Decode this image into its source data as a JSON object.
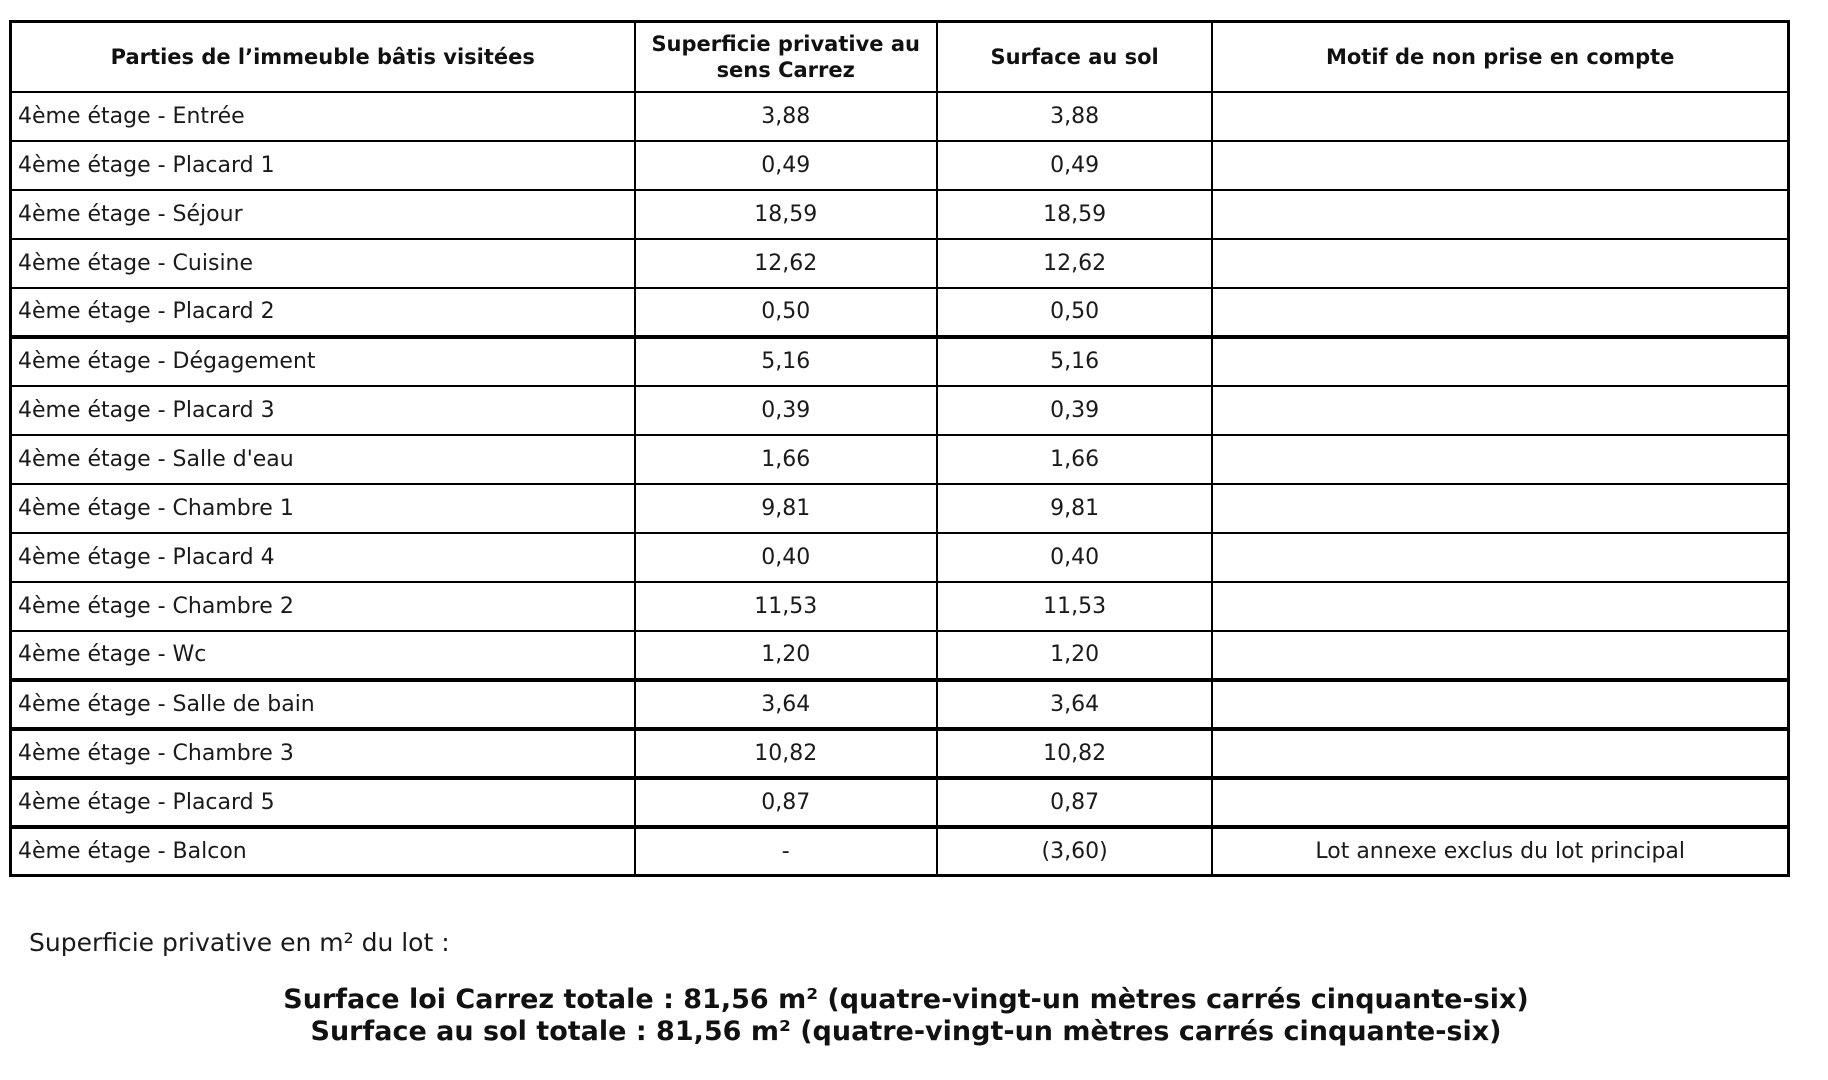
{
  "table": {
    "headers": [
      "Parties de l’immeuble bâtis visitées",
      "Superficie privative au sens Carrez",
      "Surface au sol",
      "Motif de non prise en compte"
    ],
    "rows": [
      {
        "partie": "4ème étage - Entrée",
        "superficie": "3,88",
        "surface": "3,88",
        "motif": ""
      },
      {
        "partie": "4ème étage - Placard 1",
        "superficie": "0,49",
        "surface": "0,49",
        "motif": ""
      },
      {
        "partie": "4ème étage - Séjour",
        "superficie": "18,59",
        "surface": "18,59",
        "motif": ""
      },
      {
        "partie": "4ème étage - Cuisine",
        "superficie": "12,62",
        "surface": "12,62",
        "motif": ""
      },
      {
        "partie": "4ème étage - Placard 2",
        "superficie": "0,50",
        "surface": "0,50",
        "motif": ""
      },
      {
        "partie": "4ème étage - Dégagement",
        "superficie": "5,16",
        "surface": "5,16",
        "motif": ""
      },
      {
        "partie": "4ème étage - Placard 3",
        "superficie": "0,39",
        "surface": "0,39",
        "motif": ""
      },
      {
        "partie": "4ème étage - Salle d'eau",
        "superficie": "1,66",
        "surface": "1,66",
        "motif": ""
      },
      {
        "partie": "4ème étage - Chambre 1",
        "superficie": "9,81",
        "surface": "9,81",
        "motif": ""
      },
      {
        "partie": "4ème étage - Placard 4",
        "superficie": "0,40",
        "surface": "0,40",
        "motif": ""
      },
      {
        "partie": "4ème étage - Chambre 2",
        "superficie": "11,53",
        "surface": "11,53",
        "motif": ""
      },
      {
        "partie": "4ème étage - Wc",
        "superficie": "1,20",
        "surface": "1,20",
        "motif": ""
      },
      {
        "partie": "4ème étage - Salle de bain",
        "superficie": "3,64",
        "surface": "3,64",
        "motif": ""
      },
      {
        "partie": "4ème étage - Chambre 3",
        "superficie": "10,82",
        "surface": "10,82",
        "motif": ""
      },
      {
        "partie": "4ème étage - Placard 5",
        "superficie": "0,87",
        "surface": "0,87",
        "motif": ""
      },
      {
        "partie": "4ème étage - Balcon",
        "superficie": "-",
        "surface": "(3,60)",
        "motif": "Lot annexe exclus du lot principal"
      }
    ]
  },
  "footer": {
    "lot_label": "Superficie privative en m² du lot :",
    "carrez_total": "Surface loi Carrez totale : 81,56 m² (quatre-vingt-un mètres carrés cinquante-six)",
    "sol_total": "Surface au sol totale : 81,56 m² (quatre-vingt-un mètres carrés cinquante-six)"
  },
  "colors": {
    "border": "#000000",
    "text": "#1a1a1a",
    "background": "#ffffff"
  }
}
